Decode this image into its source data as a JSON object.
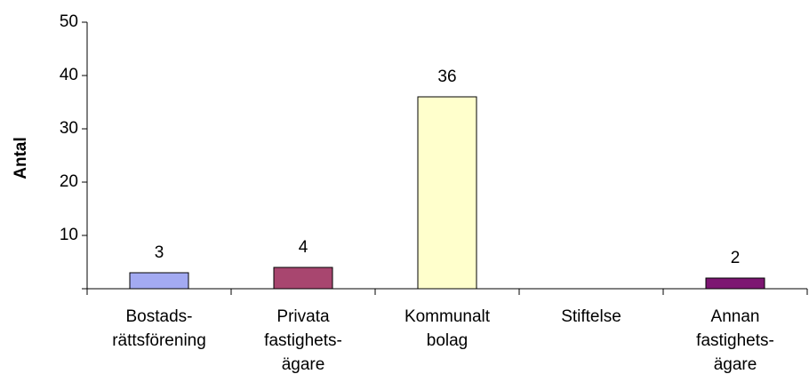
{
  "chart_data": {
    "type": "bar",
    "y_label": "Antal",
    "categories": [
      "Bostads-\nrättsförening",
      "Privata\nfastighets-\nägare",
      "Kommunalt\nbolag",
      "Stiftelse",
      "Annan\nfastighets-\nägare"
    ],
    "values": [
      3,
      4,
      36,
      null,
      2
    ],
    "colors": [
      "#a3aaf2",
      "#a8466f",
      "#ffffcc",
      "#cccccc",
      "#7d1672"
    ],
    "ylim": [
      0,
      50
    ],
    "yticks": [
      10,
      20,
      30,
      40,
      50
    ],
    "grid": false
  }
}
